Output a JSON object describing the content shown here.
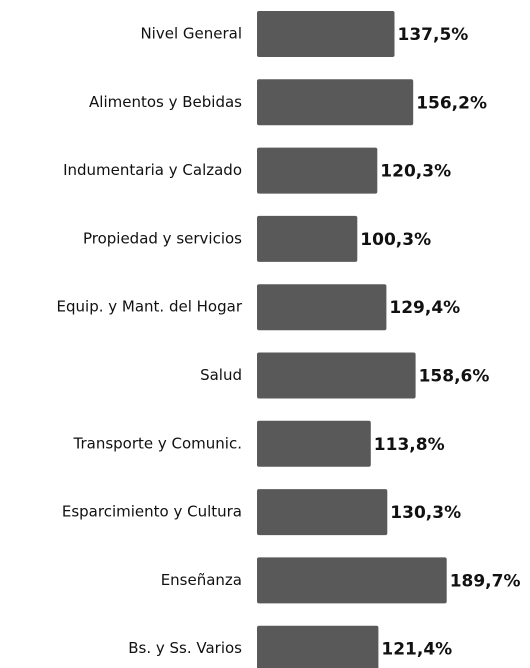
{
  "chart_data": {
    "type": "bar",
    "orientation": "horizontal",
    "categories": [
      "Nivel General",
      "Alimentos y Bebidas",
      "Indumentaria y Calzado",
      "Propiedad y servicios",
      "Equip. y Mant. del Hogar",
      "Salud",
      "Transporte y Comunic.",
      "Esparcimiento y Cultura",
      "Enseñanza",
      "Bs. y Ss. Varios"
    ],
    "values": [
      137.5,
      156.2,
      120.3,
      100.3,
      129.4,
      158.6,
      113.8,
      130.3,
      189.7,
      121.4
    ],
    "value_labels": [
      "137,5%",
      "156,2%",
      "120,3%",
      "100,3%",
      "129,4%",
      "158,6%",
      "113,8%",
      "130,3%",
      "189,7%",
      "121,4%"
    ],
    "color": "#595959",
    "xlim": [
      0,
      273
    ]
  }
}
